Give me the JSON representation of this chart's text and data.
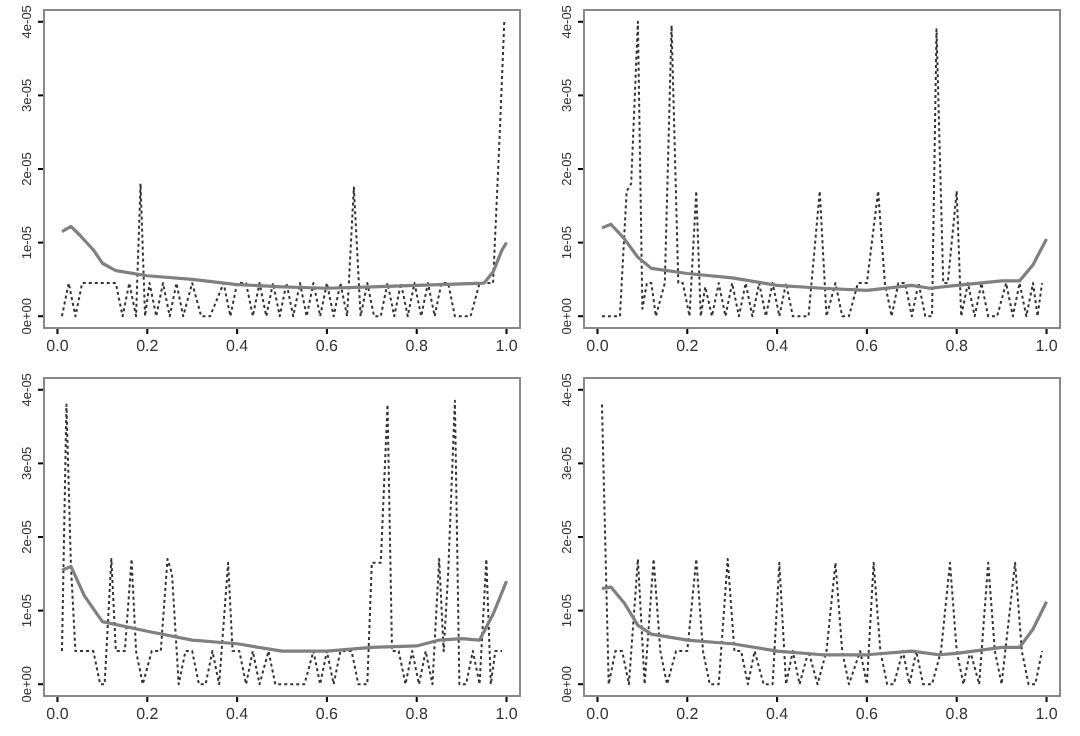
{
  "chart_data": [
    {
      "type": "line",
      "xlim": [
        -0.03,
        1.03
      ],
      "ylim": [
        -1.6e-06,
        4.16e-05
      ],
      "xticks": [
        {
          "value": 0,
          "label": "0.0"
        },
        {
          "value": 0.2,
          "label": "0.2"
        },
        {
          "value": 0.4,
          "label": "0.4"
        },
        {
          "value": 0.6,
          "label": "0.6"
        },
        {
          "value": 0.8,
          "label": "0.8"
        },
        {
          "value": 1,
          "label": "1.0"
        }
      ],
      "yticks": [
        {
          "value": 0,
          "label": "0e+00"
        },
        {
          "value": 1e-05,
          "label": "1e-05"
        },
        {
          "value": 2e-05,
          "label": "2e-05"
        },
        {
          "value": 3e-05,
          "label": "3e-05"
        },
        {
          "value": 4e-05,
          "label": "4e-05"
        }
      ],
      "series": [
        {
          "color": "#333333",
          "line_style": "dotted",
          "x": [
            0.01,
            0.025,
            0.04,
            0.055,
            0.13,
            0.145,
            0.16,
            0.175,
            0.185,
            0.195,
            0.205,
            0.22,
            0.235,
            0.25,
            0.265,
            0.28,
            0.3,
            0.32,
            0.34,
            0.37,
            0.385,
            0.4,
            0.42,
            0.435,
            0.45,
            0.465,
            0.48,
            0.495,
            0.51,
            0.525,
            0.54,
            0.555,
            0.57,
            0.585,
            0.6,
            0.615,
            0.63,
            0.645,
            0.66,
            0.675,
            0.69,
            0.705,
            0.72,
            0.735,
            0.75,
            0.765,
            0.78,
            0.795,
            0.81,
            0.825,
            0.84,
            0.855,
            0.87,
            0.885,
            0.9,
            0.92,
            0.94,
            0.97,
            0.985,
            0.995
          ],
          "values": [
            0,
            4.5e-06,
            0,
            4.5e-06,
            4.5e-06,
            0,
            4.5e-06,
            0,
            1.8e-05,
            0,
            4.5e-06,
            0,
            4.5e-06,
            0,
            4.5e-06,
            0,
            4.5e-06,
            0,
            0,
            4.5e-06,
            0,
            4.5e-06,
            4.5e-06,
            0,
            4.5e-06,
            0,
            4.5e-06,
            0,
            4.5e-06,
            0,
            4.5e-06,
            0,
            4.5e-06,
            0,
            4.5e-06,
            0,
            4.5e-06,
            0,
            1.75e-05,
            0,
            4.5e-06,
            0,
            0,
            4.5e-06,
            0,
            4.5e-06,
            0,
            4.5e-06,
            0,
            4.5e-06,
            0,
            4.5e-06,
            4.5e-06,
            0,
            0,
            0,
            4.5e-06,
            4.5e-06,
            2.5e-05,
            4e-05
          ]
        },
        {
          "color": "#808080",
          "line_style": "solid",
          "x": [
            0.01,
            0.03,
            0.05,
            0.08,
            0.1,
            0.13,
            0.2,
            0.3,
            0.4,
            0.5,
            0.6,
            0.7,
            0.8,
            0.9,
            0.95,
            0.97,
            0.99,
            1.0
          ],
          "values": [
            1.15e-05,
            1.22e-05,
            1.1e-05,
            9e-06,
            7.2e-06,
            6.2e-06,
            5.5e-06,
            5e-06,
            4.3e-06,
            4e-06,
            3.8e-06,
            4e-06,
            4.2e-06,
            4.4e-06,
            4.5e-06,
            6e-06,
            9e-06,
            1e-05
          ]
        }
      ]
    },
    {
      "type": "line",
      "xlim": [
        -0.03,
        1.03
      ],
      "ylim": [
        -1.6e-06,
        4.16e-05
      ],
      "xticks": [
        {
          "value": 0,
          "label": "0.0"
        },
        {
          "value": 0.2,
          "label": "0.2"
        },
        {
          "value": 0.4,
          "label": "0.4"
        },
        {
          "value": 0.6,
          "label": "0.6"
        },
        {
          "value": 0.8,
          "label": "0.8"
        },
        {
          "value": 1,
          "label": "1.0"
        }
      ],
      "yticks": [
        {
          "value": 0,
          "label": "0e+00"
        },
        {
          "value": 1e-05,
          "label": "1e-05"
        },
        {
          "value": 2e-05,
          "label": "2e-05"
        },
        {
          "value": 3e-05,
          "label": "3e-05"
        },
        {
          "value": 4e-05,
          "label": "4e-05"
        }
      ],
      "series": [
        {
          "color": "#333333",
          "line_style": "dotted",
          "x": [
            0.01,
            0.05,
            0.065,
            0.075,
            0.09,
            0.1,
            0.11,
            0.12,
            0.13,
            0.15,
            0.165,
            0.18,
            0.19,
            0.205,
            0.22,
            0.23,
            0.24,
            0.255,
            0.27,
            0.285,
            0.3,
            0.315,
            0.33,
            0.345,
            0.36,
            0.375,
            0.39,
            0.405,
            0.42,
            0.435,
            0.45,
            0.47,
            0.495,
            0.51,
            0.53,
            0.545,
            0.56,
            0.58,
            0.6,
            0.625,
            0.64,
            0.655,
            0.67,
            0.685,
            0.7,
            0.715,
            0.73,
            0.745,
            0.755,
            0.77,
            0.78,
            0.8,
            0.81,
            0.825,
            0.84,
            0.855,
            0.87,
            0.89,
            0.91,
            0.925,
            0.94,
            0.955,
            0.97,
            0.98,
            0.99
          ],
          "values": [
            0,
            0,
            1.7e-05,
            1.8e-05,
            4e-05,
            1e-06,
            4.5e-06,
            4.5e-06,
            0,
            4.5e-06,
            3.95e-05,
            4.5e-06,
            4.5e-06,
            0,
            1.7e-05,
            0,
            4e-06,
            0,
            4.5e-06,
            0,
            4.5e-06,
            0,
            4.5e-06,
            0,
            4.5e-06,
            0,
            4.5e-06,
            0,
            4.5e-06,
            0,
            0,
            0,
            1.7e-05,
            0,
            4.5e-06,
            0,
            0,
            4.5e-06,
            4.5e-06,
            1.7e-05,
            4.5e-06,
            0,
            4.5e-06,
            4.5e-06,
            0,
            4.5e-06,
            0,
            0,
            3.9e-05,
            4.5e-06,
            4.5e-06,
            1.7e-05,
            0,
            4.5e-06,
            0,
            4.5e-06,
            0,
            0,
            4.5e-06,
            0,
            4.5e-06,
            0,
            4.5e-06,
            0,
            4.5e-06
          ]
        },
        {
          "color": "#808080",
          "line_style": "solid",
          "x": [
            0.01,
            0.03,
            0.06,
            0.09,
            0.12,
            0.2,
            0.3,
            0.4,
            0.5,
            0.6,
            0.7,
            0.74,
            0.8,
            0.9,
            0.94,
            0.97,
            1.0
          ],
          "values": [
            1.2e-05,
            1.25e-05,
            1.05e-05,
            8e-06,
            6.5e-06,
            5.8e-06,
            5.2e-06,
            4.2e-06,
            3.8e-06,
            3.5e-06,
            4.2e-06,
            3.8e-06,
            4.2e-06,
            4.8e-06,
            4.8e-06,
            7e-06,
            1.05e-05
          ]
        }
      ]
    },
    {
      "type": "line",
      "xlim": [
        -0.03,
        1.03
      ],
      "ylim": [
        -1.6e-06,
        4.16e-05
      ],
      "xticks": [
        {
          "value": 0,
          "label": "0.0"
        },
        {
          "value": 0.2,
          "label": "0.2"
        },
        {
          "value": 0.4,
          "label": "0.4"
        },
        {
          "value": 0.6,
          "label": "0.6"
        },
        {
          "value": 0.8,
          "label": "0.8"
        },
        {
          "value": 1,
          "label": "1.0"
        }
      ],
      "yticks": [
        {
          "value": 0,
          "label": "0e+00"
        },
        {
          "value": 1e-05,
          "label": "1e-05"
        },
        {
          "value": 2e-05,
          "label": "2e-05"
        },
        {
          "value": 3e-05,
          "label": "3e-05"
        },
        {
          "value": 4e-05,
          "label": "4e-05"
        }
      ],
      "series": [
        {
          "color": "#333333",
          "line_style": "dotted",
          "x": [
            0.01,
            0.02,
            0.03,
            0.04,
            0.08,
            0.095,
            0.105,
            0.12,
            0.13,
            0.15,
            0.165,
            0.175,
            0.19,
            0.21,
            0.23,
            0.245,
            0.255,
            0.27,
            0.285,
            0.3,
            0.315,
            0.33,
            0.345,
            0.36,
            0.38,
            0.39,
            0.405,
            0.42,
            0.435,
            0.45,
            0.47,
            0.485,
            0.55,
            0.57,
            0.585,
            0.6,
            0.615,
            0.63,
            0.655,
            0.67,
            0.69,
            0.7,
            0.72,
            0.735,
            0.745,
            0.76,
            0.775,
            0.79,
            0.805,
            0.82,
            0.835,
            0.85,
            0.86,
            0.87,
            0.885,
            0.895,
            0.91,
            0.925,
            0.94,
            0.955,
            0.965,
            0.975,
            0.99
          ],
          "values": [
            4.5e-06,
            3.8e-05,
            1.6e-05,
            4.5e-06,
            4.5e-06,
            0,
            0,
            1.7e-05,
            4.5e-06,
            4.5e-06,
            1.7e-05,
            4.5e-06,
            0,
            4.5e-06,
            4.5e-06,
            1.7e-05,
            1.5e-05,
            0,
            4.5e-06,
            4.5e-06,
            0,
            0,
            4.5e-06,
            0,
            1.65e-05,
            4.5e-06,
            4.5e-06,
            0,
            4.5e-06,
            0,
            4.5e-06,
            0,
            0,
            4.5e-06,
            0,
            4.5e-06,
            0,
            4.5e-06,
            4.5e-06,
            0,
            0,
            1.65e-05,
            1.65e-05,
            3.8e-05,
            4.5e-06,
            4.5e-06,
            0,
            4.5e-06,
            0,
            4.5e-06,
            0,
            1.7e-05,
            4.5e-06,
            1.5e-05,
            3.85e-05,
            0,
            0,
            4.5e-06,
            0,
            1.7e-05,
            0,
            4.5e-06,
            4.5e-06
          ]
        },
        {
          "color": "#808080",
          "line_style": "solid",
          "x": [
            0.01,
            0.03,
            0.06,
            0.1,
            0.2,
            0.3,
            0.4,
            0.5,
            0.6,
            0.7,
            0.8,
            0.85,
            0.9,
            0.94,
            0.97,
            1.0
          ],
          "values": [
            1.55e-05,
            1.6e-05,
            1.2e-05,
            8.5e-06,
            7.2e-06,
            6e-06,
            5.5e-06,
            4.5e-06,
            4.5e-06,
            5e-06,
            5.2e-06,
            6e-06,
            6.2e-06,
            6e-06,
            9.5e-06,
            1.4e-05
          ]
        }
      ]
    },
    {
      "type": "line",
      "xlim": [
        -0.03,
        1.03
      ],
      "ylim": [
        -1.6e-06,
        4.16e-05
      ],
      "xticks": [
        {
          "value": 0,
          "label": "0.0"
        },
        {
          "value": 0.2,
          "label": "0.2"
        },
        {
          "value": 0.4,
          "label": "0.4"
        },
        {
          "value": 0.6,
          "label": "0.6"
        },
        {
          "value": 0.8,
          "label": "0.8"
        },
        {
          "value": 1,
          "label": "1.0"
        }
      ],
      "yticks": [
        {
          "value": 0,
          "label": "0e+00"
        },
        {
          "value": 1e-05,
          "label": "1e-05"
        },
        {
          "value": 2e-05,
          "label": "2e-05"
        },
        {
          "value": 3e-05,
          "label": "3e-05"
        },
        {
          "value": 4e-05,
          "label": "4e-05"
        }
      ],
      "series": [
        {
          "color": "#333333",
          "line_style": "dotted",
          "x": [
            0.01,
            0.025,
            0.04,
            0.055,
            0.07,
            0.09,
            0.105,
            0.125,
            0.14,
            0.155,
            0.175,
            0.2,
            0.22,
            0.235,
            0.25,
            0.27,
            0.29,
            0.305,
            0.32,
            0.335,
            0.35,
            0.37,
            0.39,
            0.405,
            0.42,
            0.435,
            0.45,
            0.47,
            0.49,
            0.51,
            0.53,
            0.545,
            0.56,
            0.585,
            0.6,
            0.615,
            0.63,
            0.645,
            0.66,
            0.68,
            0.695,
            0.71,
            0.725,
            0.745,
            0.765,
            0.785,
            0.8,
            0.815,
            0.83,
            0.85,
            0.87,
            0.885,
            0.9,
            0.93,
            0.945,
            0.96,
            0.975,
            0.99
          ],
          "values": [
            3.8e-05,
            0,
            4.5e-06,
            4.5e-06,
            0,
            1.7e-05,
            0,
            1.7e-05,
            4.5e-06,
            0,
            4.5e-06,
            4.5e-06,
            1.7e-05,
            4.5e-06,
            0,
            0,
            1.7e-05,
            4.5e-06,
            4.5e-06,
            0,
            4.5e-06,
            0,
            0,
            1.65e-05,
            0,
            4.5e-06,
            0,
            4.5e-06,
            0,
            4.5e-06,
            1.65e-05,
            4.5e-06,
            0,
            4.5e-06,
            0,
            1.65e-05,
            4.5e-06,
            0,
            0,
            4.5e-06,
            0,
            4.5e-06,
            0,
            0,
            4.5e-06,
            1.65e-05,
            4.5e-06,
            0,
            4.5e-06,
            0,
            1.65e-05,
            4.5e-06,
            0,
            1.65e-05,
            4.5e-06,
            0,
            0,
            4.5e-06
          ]
        },
        {
          "color": "#808080",
          "line_style": "solid",
          "x": [
            0.01,
            0.03,
            0.06,
            0.09,
            0.12,
            0.2,
            0.3,
            0.4,
            0.5,
            0.6,
            0.7,
            0.76,
            0.8,
            0.9,
            0.94,
            0.97,
            1.0
          ],
          "values": [
            1.3e-05,
            1.32e-05,
            1.1e-05,
            8e-06,
            6.8e-06,
            6e-06,
            5.5e-06,
            4.5e-06,
            4e-06,
            4e-06,
            4.5e-06,
            4e-06,
            4.2e-06,
            5e-06,
            5e-06,
            7.5e-06,
            1.12e-05
          ]
        }
      ]
    }
  ]
}
